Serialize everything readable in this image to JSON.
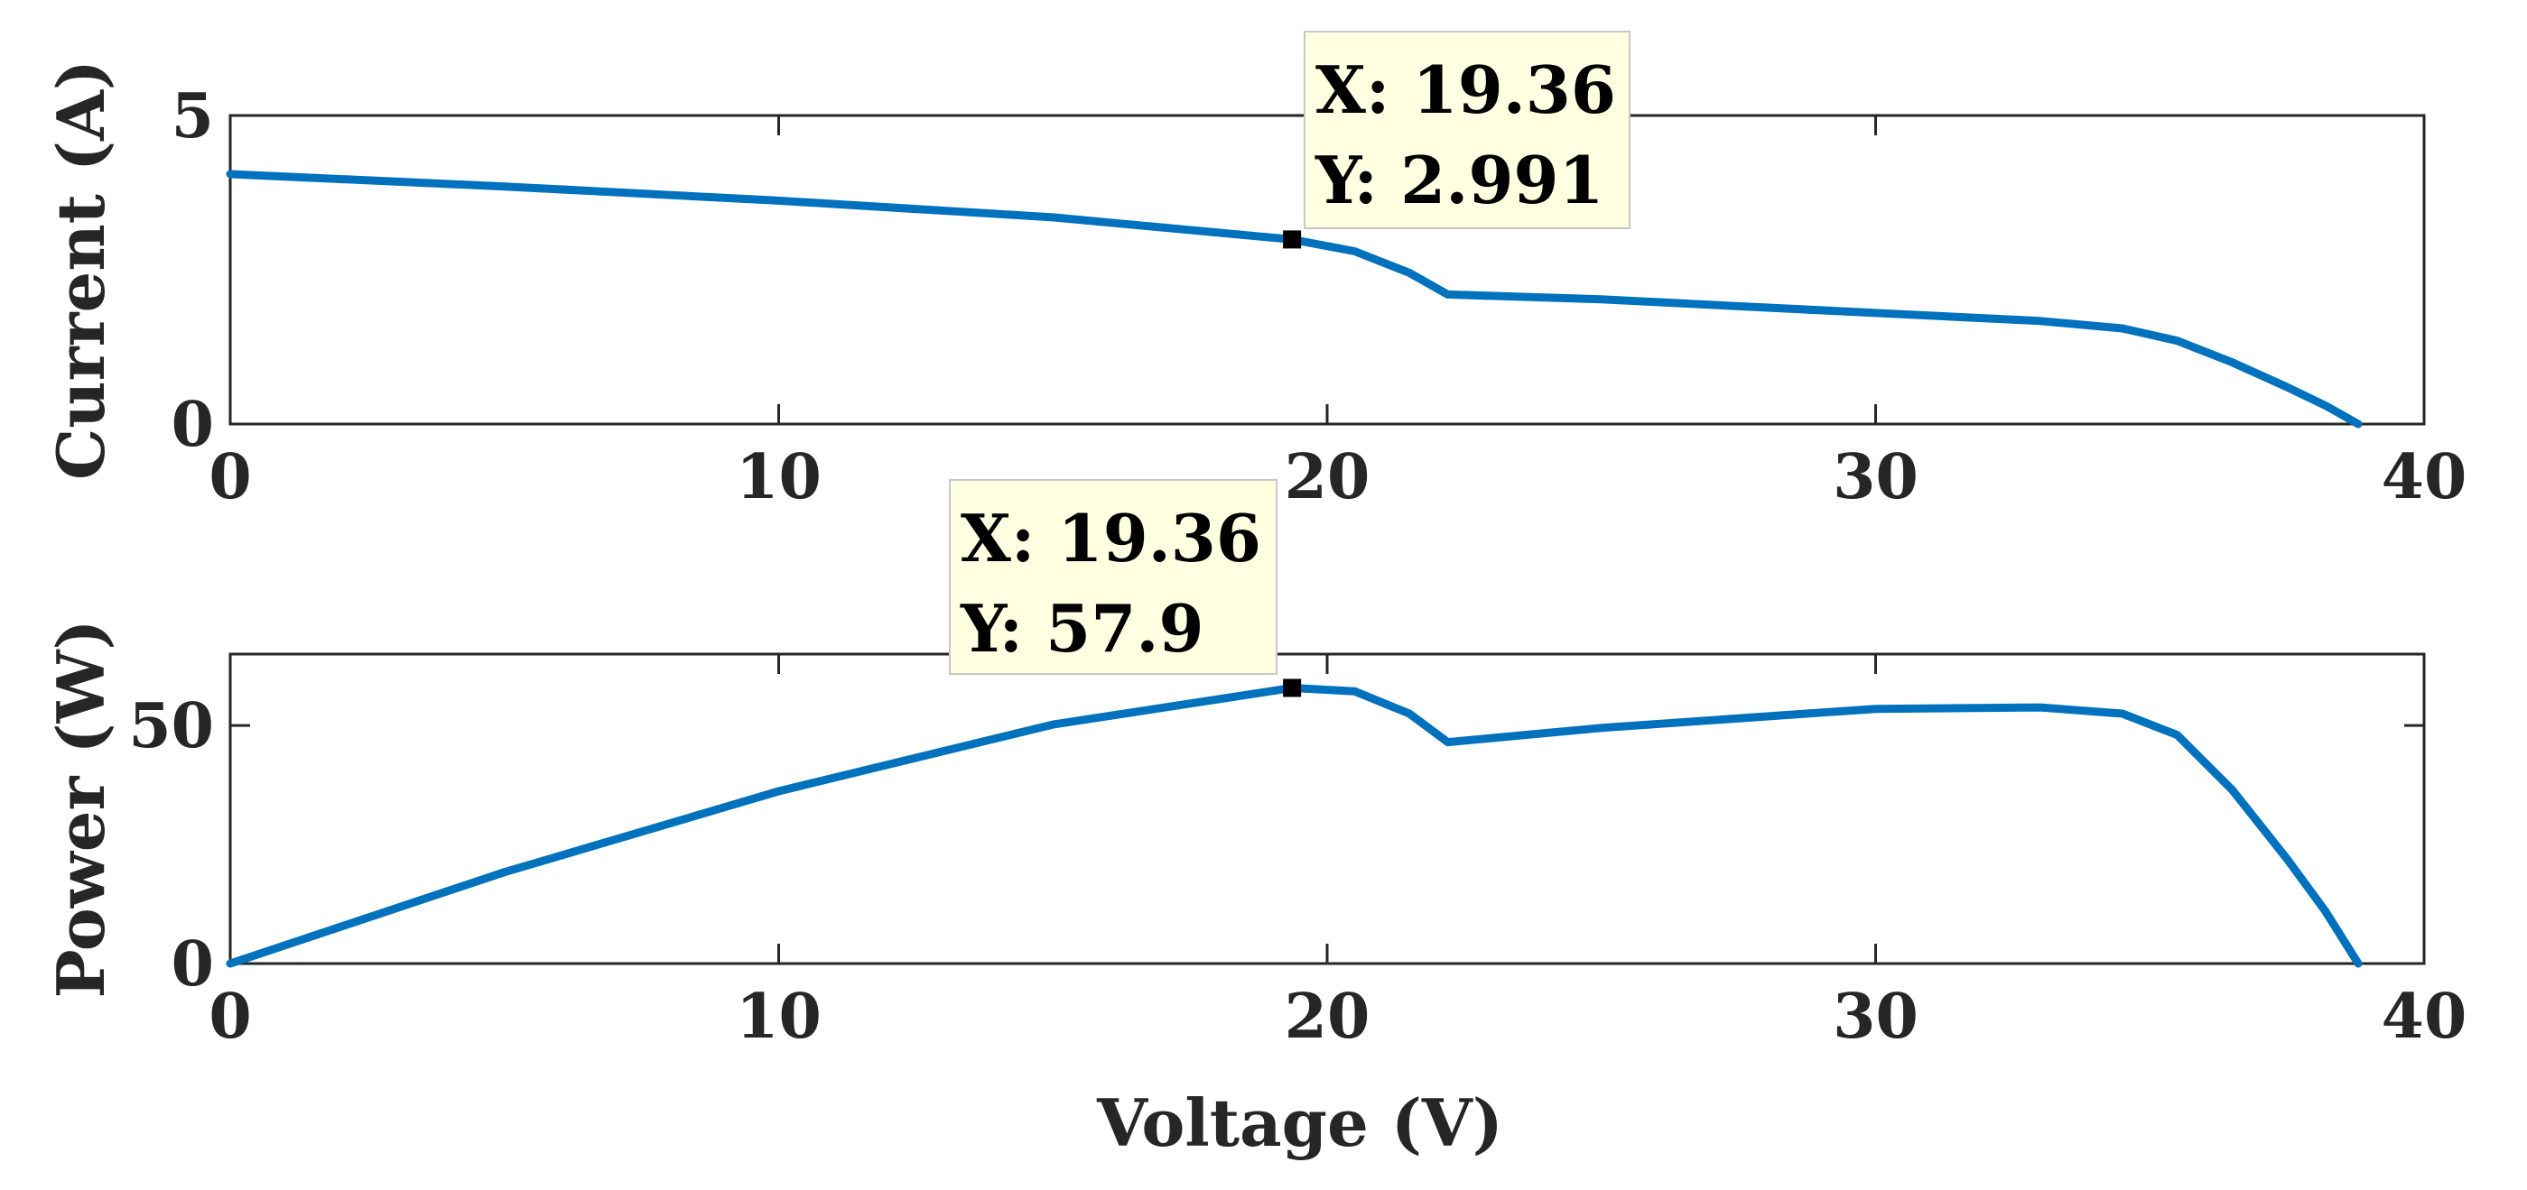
{
  "chart_data": [
    {
      "type": "line",
      "xlabel": "",
      "ylabel": "Current (A)",
      "xlim": [
        0,
        40
      ],
      "ylim": [
        0,
        5
      ],
      "xticks": [
        "0",
        "10",
        "20",
        "30",
        "40"
      ],
      "yticks": [
        "0",
        "5"
      ],
      "grid": false,
      "series": [
        {
          "color": "#0072bd",
          "x": [
            0,
            5,
            10,
            15,
            19.36,
            20.5,
            21.5,
            22.2,
            25,
            30,
            33,
            34.5,
            35.5,
            36.5,
            37.5,
            38.2,
            38.8
          ],
          "y": [
            4.05,
            3.85,
            3.62,
            3.35,
            2.991,
            2.8,
            2.45,
            2.1,
            2.02,
            1.8,
            1.67,
            1.55,
            1.35,
            1.0,
            0.6,
            0.3,
            0.0
          ]
        }
      ],
      "datatip": {
        "x": 19.36,
        "y": 2.991,
        "line1": "X: 19.36",
        "line2": "Y: 2.991"
      }
    },
    {
      "type": "line",
      "xlabel": "Voltage (V)",
      "ylabel": "Power (W)",
      "xlim": [
        0,
        40
      ],
      "ylim": [
        0,
        65
      ],
      "xticks": [
        "0",
        "10",
        "20",
        "30",
        "40"
      ],
      "yticks": [
        "0",
        "50"
      ],
      "grid": false,
      "series": [
        {
          "color": "#0072bd",
          "x": [
            0,
            5,
            10,
            15,
            19.36,
            20.5,
            21.5,
            22.2,
            25,
            30,
            33,
            34.5,
            35.5,
            36.5,
            37.5,
            38.2,
            38.8
          ],
          "y": [
            0,
            19.2,
            36.2,
            50.2,
            57.9,
            57.2,
            52.5,
            46.5,
            49.5,
            53.5,
            53.8,
            52.5,
            48.0,
            36.5,
            22.0,
            11.0,
            0
          ]
        }
      ],
      "datatip": {
        "x": 19.36,
        "y": 57.9,
        "line1": "X: 19.36",
        "line2": "Y: 57.9"
      }
    }
  ]
}
